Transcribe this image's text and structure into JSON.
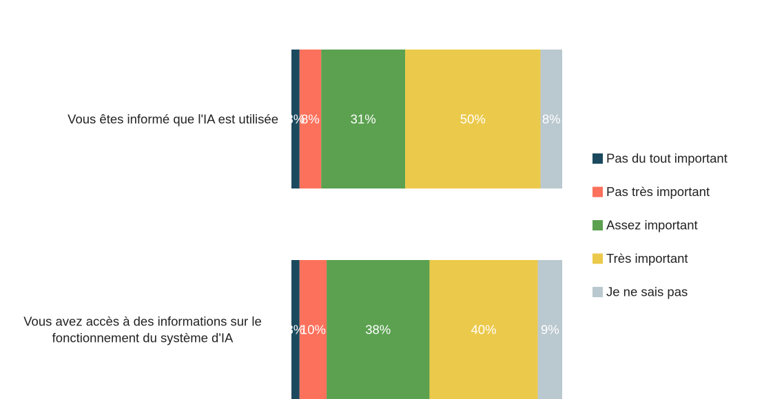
{
  "chart_data": {
    "type": "bar",
    "orientation": "horizontal",
    "stacked": true,
    "normalized": true,
    "categories": [
      [
        "Vous êtes informé que l'IA est utilisée"
      ],
      [
        "Vous avez accès à des informations sur le",
        "fonctionnement du système d'IA"
      ]
    ],
    "series": [
      {
        "name": "Pas du tout important",
        "color": "#1b4a5f",
        "values": [
          3,
          3
        ],
        "labels": [
          "3%",
          "3%"
        ]
      },
      {
        "name": "Pas très important",
        "color": "#fc715c",
        "values": [
          8,
          10
        ],
        "labels": [
          "8%",
          "10%"
        ]
      },
      {
        "name": "Assez important",
        "color": "#5ba150",
        "values": [
          31,
          38
        ],
        "labels": [
          "31%",
          "38%"
        ]
      },
      {
        "name": "Très important",
        "color": "#ebc94a",
        "values": [
          50,
          40
        ],
        "labels": [
          "50%",
          "40%"
        ]
      },
      {
        "name": "Je ne sais pas",
        "color": "#bac8cf",
        "values": [
          8,
          9
        ],
        "labels": [
          "8%",
          "9%"
        ]
      }
    ],
    "data_label_color": "#ffffff",
    "legend_position": "right",
    "grid": false,
    "axes_visible": false
  }
}
